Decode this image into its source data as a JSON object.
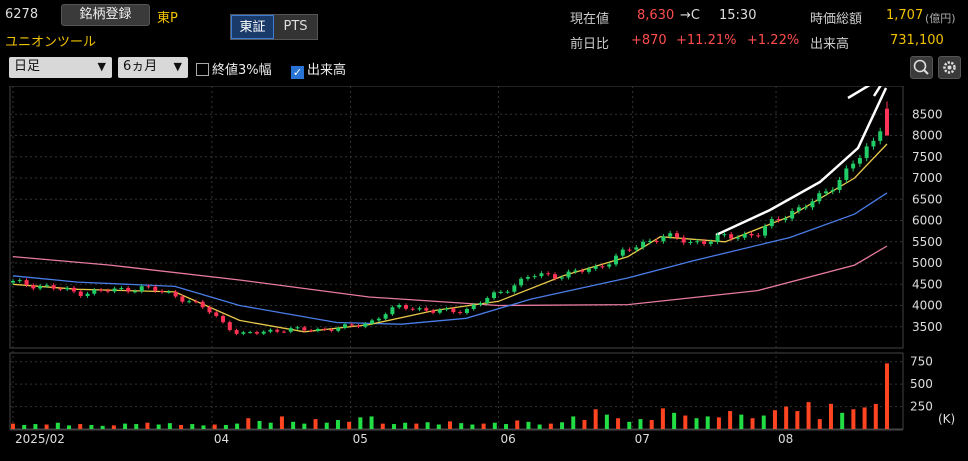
{
  "header": {
    "code": "6278",
    "register_label": "銘柄登録",
    "market": "東P",
    "name": "ユニオンツール",
    "exchange_tabs": [
      "東証",
      "PTS"
    ],
    "current_label": "現在値",
    "current_value": "8,630",
    "current_suffix": "→C",
    "time": "15:30",
    "mcap_label": "時価総額",
    "mcap_value": "1,707",
    "mcap_unit": "(億円)",
    "prev_label": "前日比",
    "change": "+870",
    "change_pct": "+11.21%",
    "change_pct2": "+1.22%",
    "volume_label": "出来高",
    "volume_value": "731,100"
  },
  "toolbar": {
    "period": "日足",
    "range": "6ヵ月",
    "close3_label": "終値3%幅",
    "close3_checked": false,
    "volume_label": "出来高",
    "volume_checked": true
  },
  "colors": {
    "up": "#22cc66",
    "down": "#ff3355",
    "ma_short": "#e8c84a",
    "ma_mid": "#4a7de8",
    "ma_long": "#e87aa0",
    "vol_up": "#ff4422",
    "vol_down": "#22dd44",
    "arrow": "#ffffff"
  },
  "chart_data": [
    {
      "type": "candlestick",
      "y_ticks": [
        3500,
        4000,
        4500,
        5000,
        5500,
        6000,
        6500,
        7000,
        7500,
        8000,
        8500
      ],
      "ylim": [
        3000,
        9000
      ],
      "x_tick_labels": [
        {
          "label": "2025/02",
          "date": "2025-02-17"
        },
        {
          "label": "04",
          "date": "2025-04-01"
        },
        {
          "label": "05",
          "date": "2025-05-01"
        },
        {
          "label": "06",
          "date": "2025-06-02"
        },
        {
          "label": "07",
          "date": "2025-07-01"
        },
        {
          "label": "08",
          "date": "2025-08-01"
        }
      ],
      "close_series": [
        [
          "2025-02-17",
          4540
        ],
        [
          "2025-02-24",
          4450
        ],
        [
          "2025-03-03",
          4300
        ],
        [
          "2025-03-10",
          4350
        ],
        [
          "2025-03-17",
          4420
        ],
        [
          "2025-03-24",
          4250
        ],
        [
          "2025-03-31",
          3900
        ],
        [
          "2025-04-07",
          3300
        ],
        [
          "2025-04-14",
          3420
        ],
        [
          "2025-04-21",
          3430
        ],
        [
          "2025-04-28",
          3450
        ],
        [
          "2025-05-05",
          3600
        ],
        [
          "2025-05-12",
          4000
        ],
        [
          "2025-05-19",
          3850
        ],
        [
          "2025-05-26",
          3900
        ],
        [
          "2025-06-02",
          4300
        ],
        [
          "2025-06-09",
          4700
        ],
        [
          "2025-06-16",
          4720
        ],
        [
          "2025-06-23",
          4880
        ],
        [
          "2025-06-30",
          5300
        ],
        [
          "2025-07-07",
          5650
        ],
        [
          "2025-07-14",
          5480
        ],
        [
          "2025-07-21",
          5600
        ],
        [
          "2025-07-28",
          5700
        ],
        [
          "2025-08-04",
          6200
        ],
        [
          "2025-08-11",
          6550
        ],
        [
          "2025-08-18",
          7400
        ],
        [
          "2025-08-22",
          7760
        ],
        [
          "2025-08-25",
          8630
        ]
      ],
      "last_candle": {
        "date": "2025-08-25",
        "open": 8000,
        "high": 8800,
        "low": 8050,
        "close": 8630
      },
      "ma_short_series": [
        [
          "2025-02-17",
          4500
        ],
        [
          "2025-03-03",
          4380
        ],
        [
          "2025-03-24",
          4320
        ],
        [
          "2025-04-07",
          3650
        ],
        [
          "2025-04-21",
          3380
        ],
        [
          "2025-05-05",
          3550
        ],
        [
          "2025-05-19",
          3880
        ],
        [
          "2025-06-02",
          4100
        ],
        [
          "2025-06-16",
          4700
        ],
        [
          "2025-06-30",
          5150
        ],
        [
          "2025-07-07",
          5620
        ],
        [
          "2025-07-21",
          5500
        ],
        [
          "2025-08-04",
          6100
        ],
        [
          "2025-08-18",
          7000
        ],
        [
          "2025-08-25",
          7800
        ]
      ],
      "ma_mid_series": [
        [
          "2025-02-17",
          4700
        ],
        [
          "2025-03-03",
          4550
        ],
        [
          "2025-03-24",
          4450
        ],
        [
          "2025-04-07",
          4000
        ],
        [
          "2025-04-28",
          3600
        ],
        [
          "2025-05-12",
          3560
        ],
        [
          "2025-05-26",
          3700
        ],
        [
          "2025-06-09",
          4150
        ],
        [
          "2025-06-30",
          4650
        ],
        [
          "2025-07-14",
          5050
        ],
        [
          "2025-08-04",
          5600
        ],
        [
          "2025-08-18",
          6150
        ],
        [
          "2025-08-25",
          6650
        ]
      ],
      "ma_long_series": [
        [
          "2025-02-17",
          5150
        ],
        [
          "2025-03-10",
          4950
        ],
        [
          "2025-04-07",
          4600
        ],
        [
          "2025-05-05",
          4200
        ],
        [
          "2025-06-02",
          4000
        ],
        [
          "2025-06-30",
          4020
        ],
        [
          "2025-07-28",
          4350
        ],
        [
          "2025-08-18",
          4950
        ],
        [
          "2025-08-25",
          5400
        ]
      ]
    },
    {
      "type": "bar",
      "y_ticks": [
        250,
        500,
        750
      ],
      "unit_label": "(K)",
      "ylim": [
        0,
        780
      ],
      "last_value": 731.1,
      "values": [
        60,
        45,
        55,
        50,
        70,
        40,
        55,
        45,
        35,
        40,
        60,
        55,
        70,
        50,
        65,
        45,
        55,
        40,
        50,
        45,
        60,
        120,
        90,
        70,
        140,
        80,
        60,
        110,
        70,
        100,
        80,
        130,
        140,
        60,
        55,
        70,
        60,
        75,
        50,
        85,
        65,
        50,
        60,
        70,
        55,
        95,
        80,
        50,
        60,
        75,
        140,
        100,
        220,
        160,
        120,
        80,
        110,
        100,
        230,
        180,
        150,
        120,
        140,
        130,
        200,
        160,
        120,
        150,
        210,
        250,
        200,
        300,
        110,
        280,
        180,
        220,
        240,
        280,
        731.1
      ]
    }
  ]
}
